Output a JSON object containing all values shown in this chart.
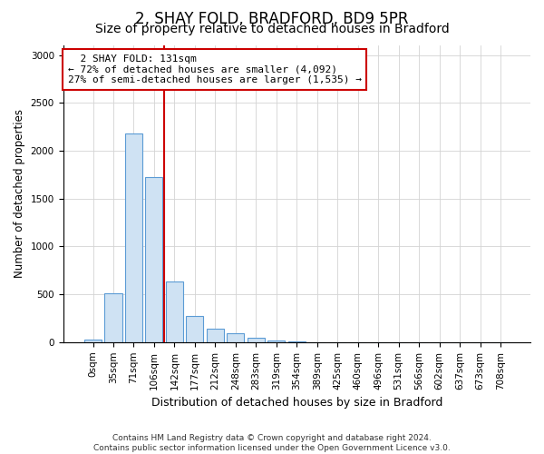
{
  "title1": "2, SHAY FOLD, BRADFORD, BD9 5PR",
  "title2": "Size of property relative to detached houses in Bradford",
  "xlabel": "Distribution of detached houses by size in Bradford",
  "ylabel": "Number of detached properties",
  "footnote": "Contains HM Land Registry data © Crown copyright and database right 2024.\nContains public sector information licensed under the Open Government Licence v3.0.",
  "bar_labels": [
    "0sqm",
    "35sqm",
    "71sqm",
    "106sqm",
    "142sqm",
    "177sqm",
    "212sqm",
    "248sqm",
    "283sqm",
    "319sqm",
    "354sqm",
    "389sqm",
    "425sqm",
    "460sqm",
    "496sqm",
    "531sqm",
    "566sqm",
    "602sqm",
    "637sqm",
    "673sqm",
    "708sqm"
  ],
  "bar_values": [
    30,
    510,
    2180,
    1720,
    630,
    270,
    145,
    90,
    50,
    15,
    5,
    0,
    0,
    0,
    0,
    0,
    0,
    0,
    0,
    0,
    0
  ],
  "bar_color": "#cfe2f3",
  "bar_edge_color": "#5b9bd5",
  "ylim": [
    0,
    3100
  ],
  "yticks": [
    0,
    500,
    1000,
    1500,
    2000,
    2500,
    3000
  ],
  "red_line_color": "#cc0000",
  "annotation_text": "  2 SHAY FOLD: 131sqm  \n← 72% of detached houses are smaller (4,092)\n27% of semi-detached houses are larger (1,535) →",
  "title1_fontsize": 12,
  "title2_fontsize": 10,
  "xlabel_fontsize": 9,
  "ylabel_fontsize": 8.5,
  "annot_fontsize": 8,
  "tick_fontsize": 7.5,
  "footnote_fontsize": 6.5
}
